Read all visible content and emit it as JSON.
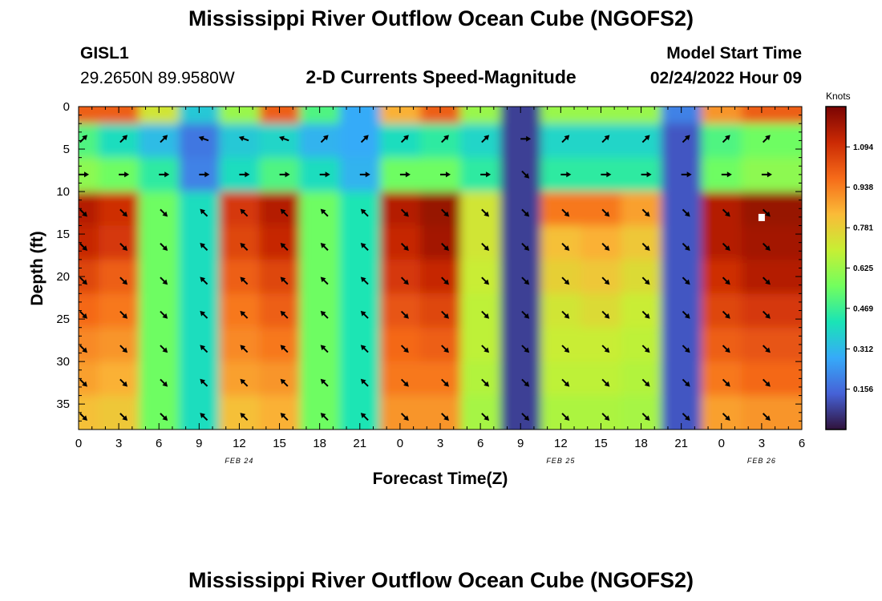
{
  "header": {
    "title": "Mississippi River Outflow Ocean Cube (NGOFS2)",
    "station_id": "GISL1",
    "station_coords": "29.2650N  89.9580W",
    "panel_title": "2-D Currents Speed-Magnitude",
    "model_start_label": "Model Start Time",
    "model_start_time": "02/24/2022 Hour 09"
  },
  "footer": {
    "title": "Mississippi River Outflow Ocean Cube (NGOFS2)"
  },
  "colorbar": {
    "unit": "Knots",
    "ticks": [
      "0.156",
      "0.312",
      "0.469",
      "0.625",
      "0.781",
      "0.938",
      "1.094"
    ],
    "tick_values": [
      0.156,
      0.312,
      0.469,
      0.625,
      0.781,
      0.938,
      1.094
    ],
    "range": [
      0.0,
      1.25
    ],
    "colormap": [
      "#30123b",
      "#4662d7",
      "#36aaf9",
      "#1ae4b6",
      "#72fe5e",
      "#c7ef34",
      "#fabb38",
      "#f66b19",
      "#cb2a04",
      "#7a0403"
    ]
  },
  "chart_data": {
    "type": "heatmap",
    "title": "2-D Currents Speed-Magnitude",
    "xlabel": "Forecast Time(Z)",
    "ylabel": "Depth (ft)",
    "x_unit": "hours since 02/24 00Z",
    "x_range": [
      0,
      54
    ],
    "y_range": [
      0,
      38
    ],
    "y_inverted": true,
    "x_ticks": [
      0,
      3,
      6,
      9,
      12,
      15,
      18,
      21,
      24,
      27,
      30,
      33,
      36,
      39,
      42,
      45,
      48,
      51,
      54
    ],
    "x_tick_labels": [
      "0",
      "3",
      "6",
      "9",
      "12",
      "15",
      "18",
      "21",
      "0",
      "3",
      "6",
      "9",
      "12",
      "15",
      "18",
      "21",
      "0",
      "3",
      "6"
    ],
    "y_ticks": [
      0,
      5,
      10,
      15,
      20,
      25,
      30,
      35
    ],
    "y_tick_labels": [
      "0",
      "5",
      "10",
      "15",
      "20",
      "25",
      "30",
      "35"
    ],
    "date_labels": [
      {
        "x": 12,
        "text": "FEB 24"
      },
      {
        "x": 36,
        "text": "FEB 25"
      },
      {
        "x": 51,
        "text": "FEB 26"
      }
    ],
    "depths": [
      0,
      4,
      8,
      12,
      16,
      20,
      24,
      28,
      32,
      36
    ],
    "times": [
      0,
      3,
      6,
      9,
      12,
      15,
      18,
      21,
      24,
      27,
      30,
      33,
      36,
      39,
      42,
      45,
      48,
      51
    ],
    "speed": [
      [
        1.0,
        1.0,
        0.72,
        0.35,
        0.62,
        1.0,
        0.5,
        0.28,
        0.85,
        1.0,
        0.62,
        0.08,
        0.62,
        0.62,
        0.62,
        0.2,
        0.9,
        1.0
      ],
      [
        0.5,
        0.4,
        0.32,
        0.18,
        0.35,
        0.38,
        0.3,
        0.28,
        0.4,
        0.45,
        0.38,
        0.08,
        0.38,
        0.38,
        0.38,
        0.12,
        0.5,
        0.55
      ],
      [
        0.6,
        0.55,
        0.45,
        0.2,
        0.4,
        0.5,
        0.4,
        0.3,
        0.55,
        0.55,
        0.45,
        0.08,
        0.45,
        0.45,
        0.45,
        0.12,
        0.55,
        0.6
      ],
      [
        1.15,
        1.1,
        0.55,
        0.4,
        1.08,
        1.15,
        0.55,
        0.42,
        1.15,
        1.2,
        0.72,
        0.08,
        0.95,
        0.95,
        0.88,
        0.12,
        1.15,
        1.2
      ],
      [
        1.12,
        1.08,
        0.55,
        0.4,
        1.05,
        1.12,
        0.55,
        0.42,
        1.12,
        1.18,
        0.72,
        0.08,
        0.82,
        0.85,
        0.8,
        0.12,
        1.15,
        1.18
      ],
      [
        1.05,
        1.0,
        0.55,
        0.4,
        1.0,
        1.05,
        0.55,
        0.42,
        1.08,
        1.12,
        0.7,
        0.08,
        0.78,
        0.8,
        0.75,
        0.12,
        1.1,
        1.15
      ],
      [
        0.98,
        0.95,
        0.55,
        0.4,
        0.95,
        1.0,
        0.55,
        0.42,
        1.02,
        1.05,
        0.68,
        0.08,
        0.72,
        0.75,
        0.7,
        0.12,
        1.05,
        1.08
      ],
      [
        0.92,
        0.9,
        0.55,
        0.4,
        0.92,
        0.95,
        0.55,
        0.42,
        0.98,
        1.0,
        0.68,
        0.08,
        0.7,
        0.7,
        0.68,
        0.12,
        1.0,
        1.02
      ],
      [
        0.88,
        0.85,
        0.55,
        0.4,
        0.88,
        0.9,
        0.55,
        0.42,
        0.95,
        0.95,
        0.66,
        0.08,
        0.68,
        0.68,
        0.66,
        0.12,
        0.95,
        0.98
      ],
      [
        0.82,
        0.8,
        0.55,
        0.4,
        0.82,
        0.85,
        0.55,
        0.42,
        0.9,
        0.9,
        0.64,
        0.08,
        0.65,
        0.65,
        0.64,
        0.12,
        0.88,
        0.9
      ]
    ],
    "arrow_depths": [
      3.8,
      8.0,
      12.5,
      16.5,
      20.5,
      24.5,
      28.5,
      32.5,
      36.5
    ],
    "arrow_times": [
      0,
      3,
      6,
      9,
      12,
      15,
      18,
      21,
      24,
      27,
      30,
      33,
      36,
      39,
      42,
      45,
      48,
      51
    ],
    "arrow_direction_deg": [
      [
        45,
        45,
        45,
        290,
        290,
        290,
        45,
        45,
        45,
        45,
        45,
        90,
        45,
        45,
        45,
        45,
        45,
        45
      ],
      [
        90,
        90,
        90,
        90,
        90,
        90,
        90,
        90,
        90,
        90,
        90,
        135,
        90,
        90,
        90,
        90,
        90,
        90
      ],
      [
        135,
        135,
        135,
        315,
        315,
        315,
        315,
        315,
        135,
        135,
        135,
        135,
        135,
        135,
        135,
        135,
        135,
        135
      ],
      [
        135,
        135,
        135,
        315,
        315,
        315,
        315,
        315,
        135,
        135,
        135,
        135,
        135,
        135,
        135,
        135,
        135,
        135
      ],
      [
        135,
        135,
        135,
        315,
        315,
        315,
        315,
        315,
        135,
        135,
        135,
        135,
        135,
        135,
        135,
        135,
        135,
        135
      ],
      [
        135,
        135,
        135,
        315,
        315,
        315,
        315,
        315,
        135,
        135,
        135,
        135,
        135,
        135,
        135,
        135,
        135,
        135
      ],
      [
        135,
        135,
        135,
        315,
        315,
        315,
        315,
        315,
        135,
        135,
        135,
        135,
        135,
        135,
        135,
        135,
        135,
        135
      ],
      [
        135,
        135,
        135,
        315,
        315,
        315,
        315,
        315,
        135,
        135,
        135,
        135,
        135,
        135,
        135,
        135,
        135,
        135
      ],
      [
        135,
        135,
        135,
        315,
        315,
        315,
        315,
        315,
        135,
        135,
        135,
        135,
        135,
        135,
        135,
        135,
        135,
        135
      ]
    ],
    "marker": {
      "x": 51,
      "y": 13
    }
  }
}
